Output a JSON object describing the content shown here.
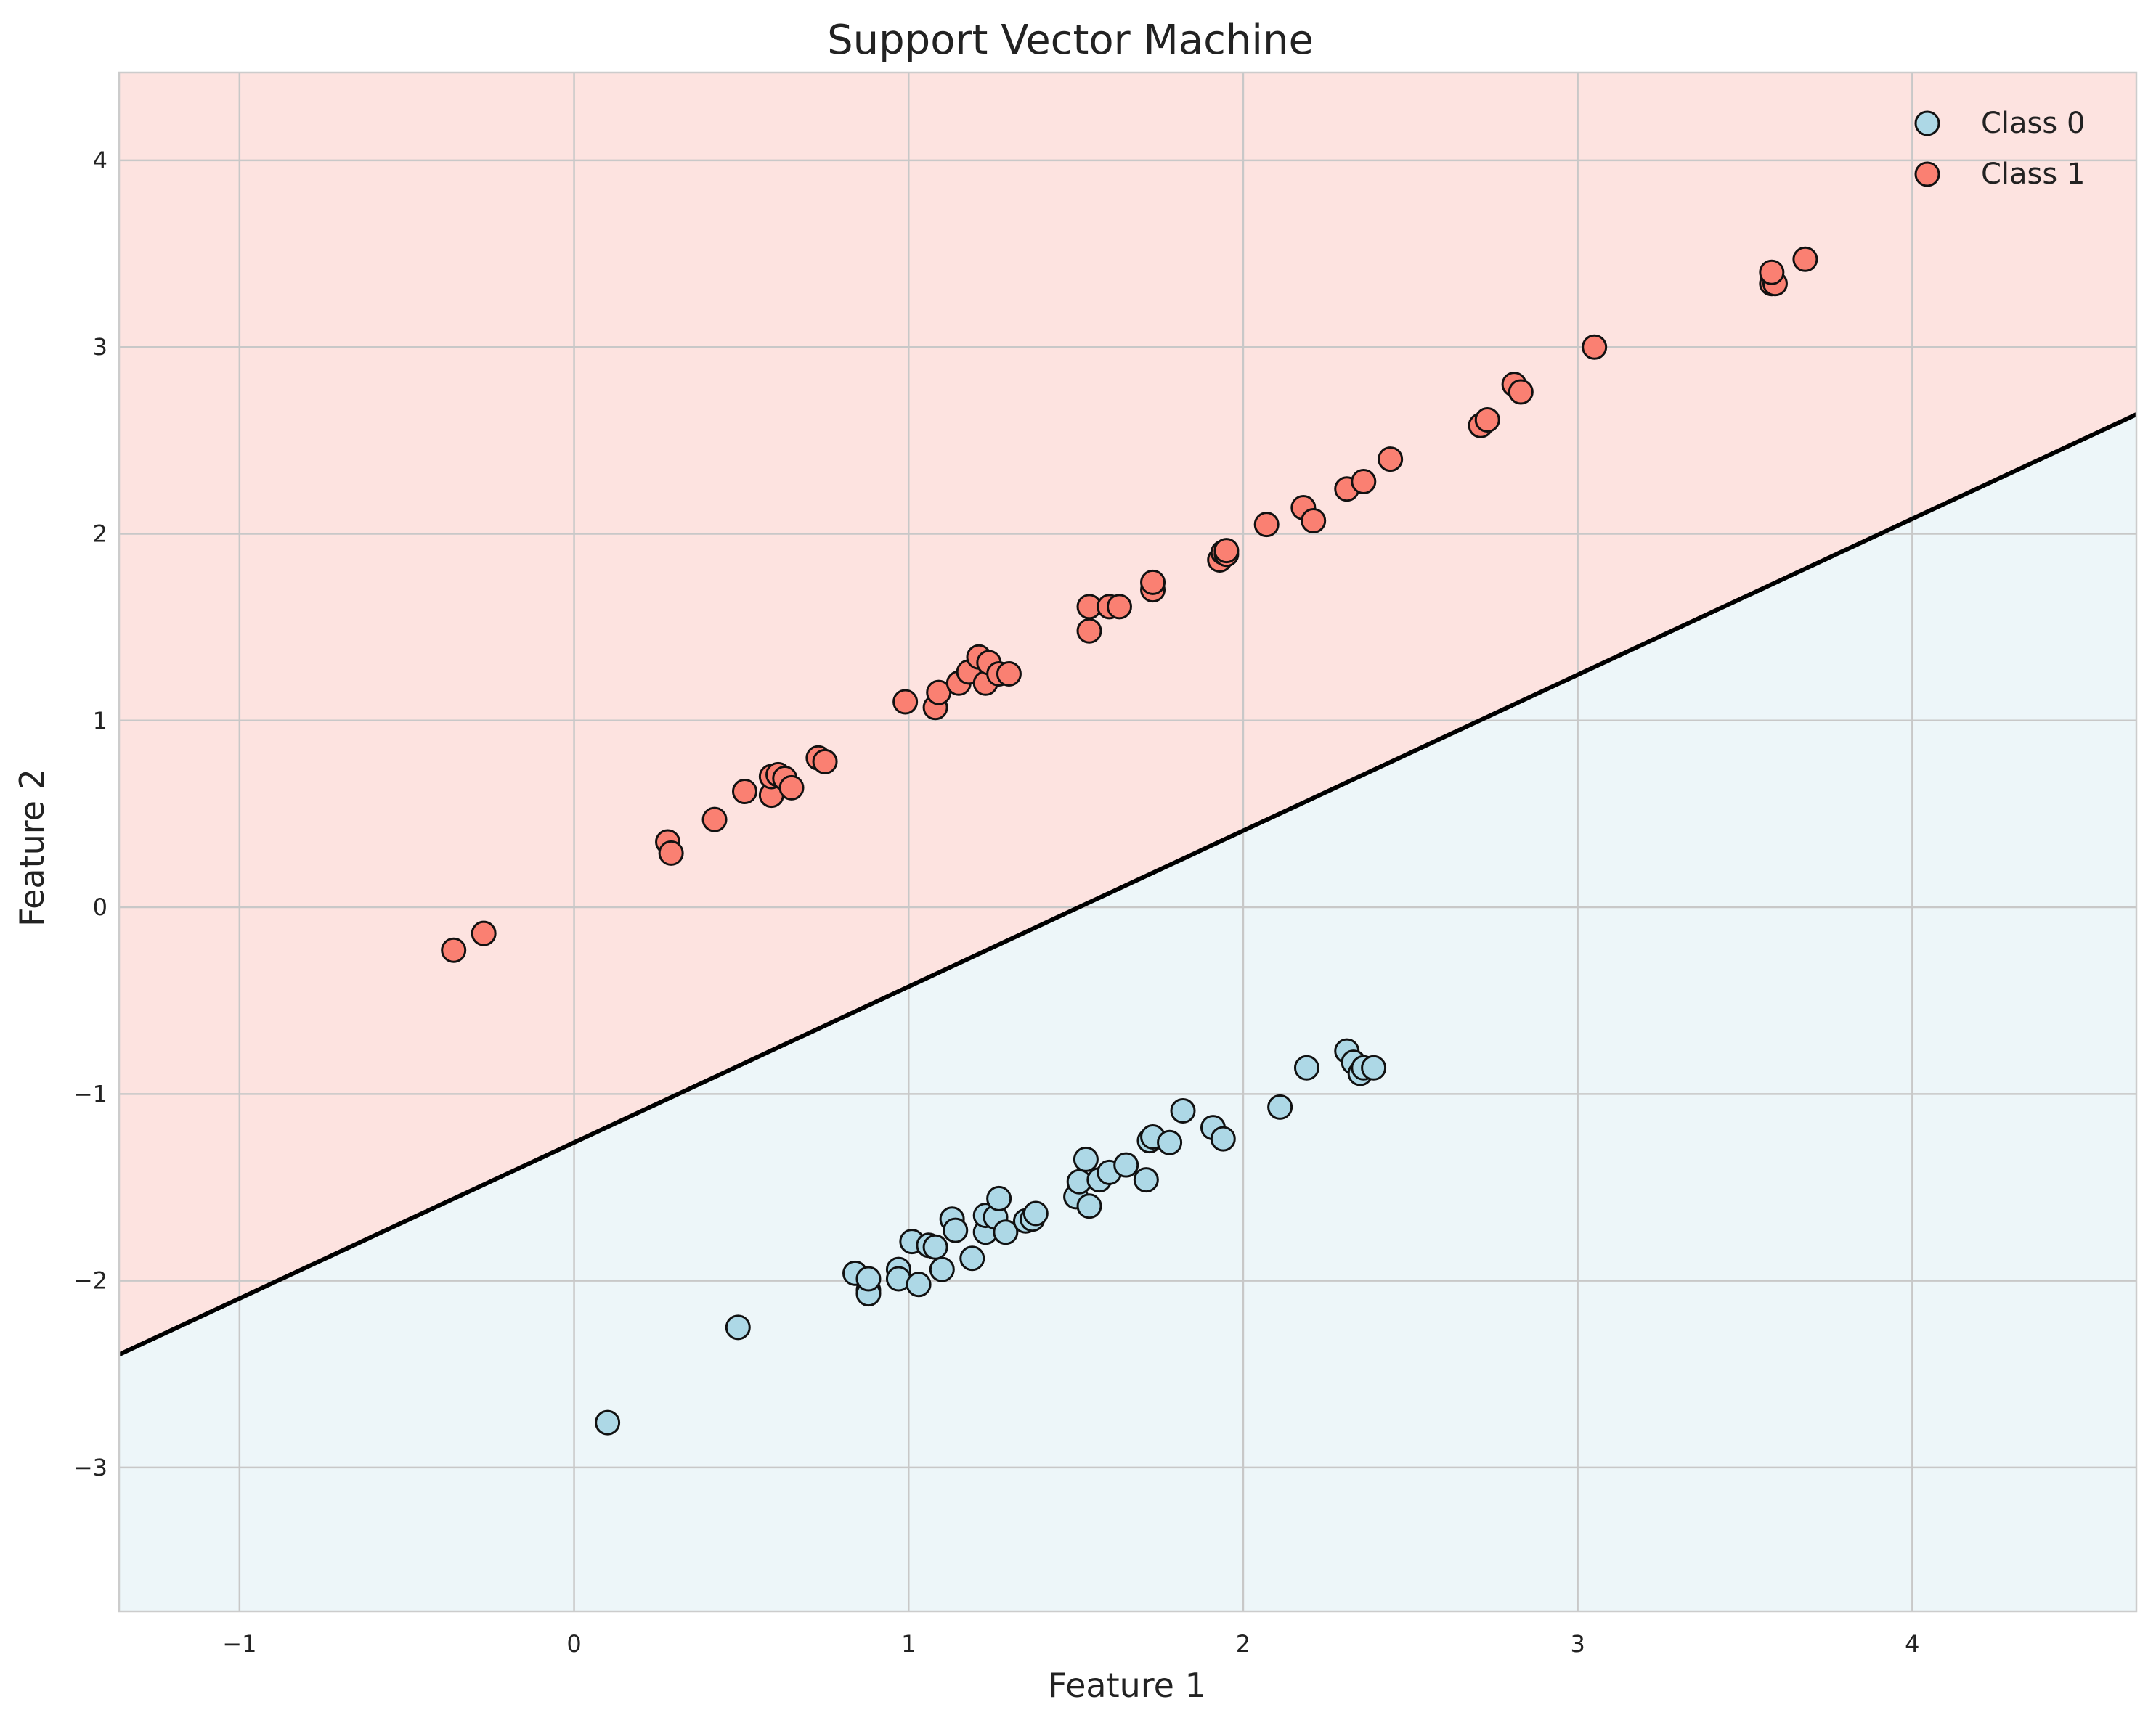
{
  "chart_data": {
    "type": "scatter",
    "title": "Support Vector Machine",
    "xlabel": "Feature 1",
    "ylabel": "Feature 2",
    "xlim": [
      -1.36,
      4.67
    ],
    "ylim": [
      -3.77,
      4.47
    ],
    "xticks": [
      -1,
      0,
      1,
      2,
      3,
      4
    ],
    "yticks": [
      -3,
      -2,
      -1,
      0,
      1,
      2,
      3,
      4
    ],
    "xtick_labels": [
      "−1",
      "0",
      "1",
      "2",
      "3",
      "4"
    ],
    "ytick_labels": [
      "−3",
      "−2",
      "−1",
      "0",
      "1",
      "2",
      "3",
      "4"
    ],
    "grid": true,
    "legend_position": "top-right",
    "decision_boundary": {
      "slope": 0.835,
      "intercept": -1.26,
      "color": "#000000"
    },
    "regions": {
      "class_0_fill": "#edf6f9",
      "class_1_fill": "#fde3e0"
    },
    "series": [
      {
        "name": "Class 0",
        "color": "#add8e6",
        "points": [
          [
            0.1,
            -2.76
          ],
          [
            0.49,
            -2.25
          ],
          [
            0.84,
            -1.96
          ],
          [
            0.88,
            -2.05
          ],
          [
            0.88,
            -2.07
          ],
          [
            0.88,
            -1.99
          ],
          [
            0.97,
            -1.94
          ],
          [
            0.97,
            -1.99
          ],
          [
            1.01,
            -1.79
          ],
          [
            1.03,
            -2.02
          ],
          [
            1.06,
            -1.81
          ],
          [
            1.08,
            -1.82
          ],
          [
            1.1,
            -1.94
          ],
          [
            1.13,
            -1.67
          ],
          [
            1.14,
            -1.73
          ],
          [
            1.19,
            -1.88
          ],
          [
            1.23,
            -1.74
          ],
          [
            1.23,
            -1.65
          ],
          [
            1.26,
            -1.66
          ],
          [
            1.27,
            -1.56
          ],
          [
            1.29,
            -1.74
          ],
          [
            1.35,
            -1.68
          ],
          [
            1.37,
            -1.67
          ],
          [
            1.38,
            -1.64
          ],
          [
            1.5,
            -1.55
          ],
          [
            1.51,
            -1.47
          ],
          [
            1.53,
            -1.35
          ],
          [
            1.54,
            -1.6
          ],
          [
            1.57,
            -1.46
          ],
          [
            1.6,
            -1.42
          ],
          [
            1.65,
            -1.38
          ],
          [
            1.71,
            -1.46
          ],
          [
            1.72,
            -1.25
          ],
          [
            1.73,
            -1.23
          ],
          [
            1.78,
            -1.26
          ],
          [
            1.82,
            -1.09
          ],
          [
            1.91,
            -1.18
          ],
          [
            1.94,
            -1.24
          ],
          [
            2.11,
            -1.07
          ],
          [
            2.19,
            -0.86
          ],
          [
            2.31,
            -0.77
          ],
          [
            2.33,
            -0.83
          ],
          [
            2.35,
            -0.89
          ],
          [
            2.36,
            -0.86
          ],
          [
            2.39,
            -0.86
          ]
        ]
      },
      {
        "name": "Class 1",
        "color": "#fa8072",
        "points": [
          [
            -0.36,
            -0.23
          ],
          [
            -0.27,
            -0.14
          ],
          [
            0.28,
            0.35
          ],
          [
            0.29,
            0.29
          ],
          [
            0.42,
            0.47
          ],
          [
            0.51,
            0.62
          ],
          [
            0.59,
            0.6
          ],
          [
            0.59,
            0.7
          ],
          [
            0.61,
            0.71
          ],
          [
            0.63,
            0.69
          ],
          [
            0.65,
            0.64
          ],
          [
            0.73,
            0.8
          ],
          [
            0.75,
            0.78
          ],
          [
            0.99,
            1.1
          ],
          [
            1.08,
            1.07
          ],
          [
            1.09,
            1.15
          ],
          [
            1.15,
            1.2
          ],
          [
            1.18,
            1.26
          ],
          [
            1.21,
            1.34
          ],
          [
            1.23,
            1.2
          ],
          [
            1.24,
            1.31
          ],
          [
            1.27,
            1.25
          ],
          [
            1.3,
            1.25
          ],
          [
            1.54,
            1.61
          ],
          [
            1.54,
            1.48
          ],
          [
            1.6,
            1.61
          ],
          [
            1.63,
            1.61
          ],
          [
            1.73,
            1.7
          ],
          [
            1.73,
            1.74
          ],
          [
            1.93,
            1.86
          ],
          [
            1.94,
            1.9
          ],
          [
            1.95,
            1.89
          ],
          [
            1.95,
            1.91
          ],
          [
            2.07,
            2.05
          ],
          [
            2.18,
            2.14
          ],
          [
            2.21,
            2.07
          ],
          [
            2.31,
            2.24
          ],
          [
            2.36,
            2.28
          ],
          [
            2.44,
            2.4
          ],
          [
            2.71,
            2.58
          ],
          [
            2.73,
            2.61
          ],
          [
            2.81,
            2.8
          ],
          [
            2.83,
            2.76
          ],
          [
            3.05,
            3.0
          ],
          [
            3.58,
            3.34
          ],
          [
            3.59,
            3.34
          ],
          [
            3.58,
            3.4
          ],
          [
            3.68,
            3.47
          ]
        ]
      }
    ]
  }
}
